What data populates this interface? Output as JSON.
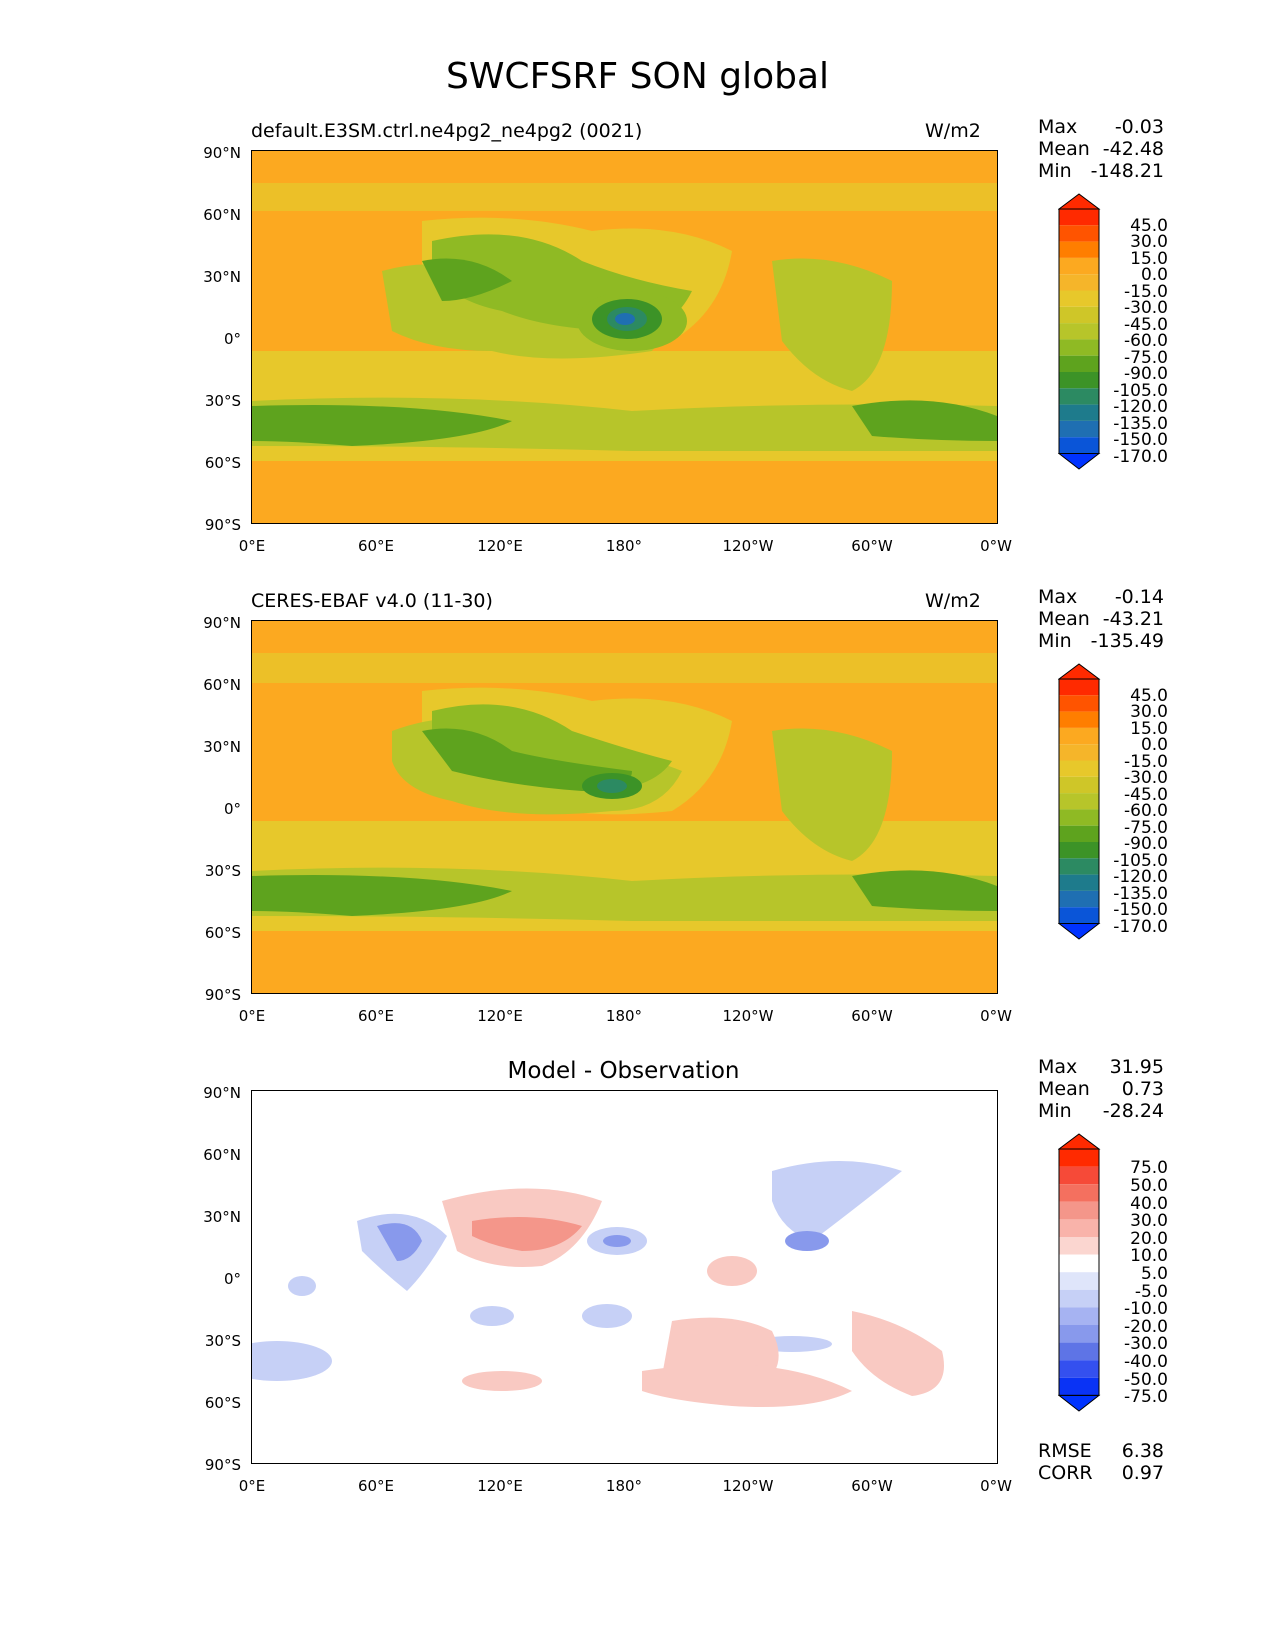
{
  "title": "SWCFSRF SON global",
  "colors": {
    "orange": "#fca920",
    "yellow": "#e7c82b",
    "yellowgreen": "#b7c52a",
    "green1": "#8fba24",
    "green2": "#5ea31e",
    "green3": "#3c9327",
    "teal": "#2c8a62",
    "blue1": "#1f6fb2",
    "white": "#ffffff",
    "red1": "#f9c9c2",
    "red2": "#f4968a",
    "blue_light": "#c6d0f6",
    "blue_mid": "#8899ec"
  },
  "panels": [
    {
      "left_label": "default.E3SM.ctrl.ne4pg2_ne4pg2 (0021)",
      "right_label": "W/m2",
      "max_label": "Max",
      "max": "-0.03",
      "mean_label": "Mean",
      "mean": "-42.48",
      "min_label": "Min",
      "min": "-148.21",
      "colorbar_levels": [
        "45.0",
        "30.0",
        "15.0",
        "0.0",
        "-15.0",
        "-30.0",
        "-45.0",
        "-60.0",
        "-75.0",
        "-90.0",
        "-105.0",
        "-120.0",
        "-135.0",
        "-150.0",
        "-170.0"
      ]
    },
    {
      "left_label": "CERES-EBAF v4.0 (11-30)",
      "right_label": "W/m2",
      "max_label": "Max",
      "max": "-0.14",
      "mean_label": "Mean",
      "mean": "-43.21",
      "min_label": "Min",
      "min": "-135.49",
      "colorbar_levels": [
        "45.0",
        "30.0",
        "15.0",
        "0.0",
        "-15.0",
        "-30.0",
        "-45.0",
        "-60.0",
        "-75.0",
        "-90.0",
        "-105.0",
        "-120.0",
        "-135.0",
        "-150.0",
        "-170.0"
      ]
    },
    {
      "center_title": "Model - Observation",
      "max_label": "Max",
      "max": "31.95",
      "mean_label": "Mean",
      "mean": "0.73",
      "min_label": "Min",
      "min": "-28.24",
      "rmse_label": "RMSE",
      "rmse": "6.38",
      "corr_label": "CORR",
      "corr": "0.97",
      "colorbar_levels": [
        "75.0",
        "50.0",
        "40.0",
        "30.0",
        "20.0",
        "10.0",
        "5.0",
        "-5.0",
        "-10.0",
        "-20.0",
        "-30.0",
        "-40.0",
        "-50.0",
        "-75.0"
      ]
    }
  ],
  "axes": {
    "yticks": [
      "90°N",
      "60°N",
      "30°N",
      "0°",
      "30°S",
      "60°S",
      "90°S"
    ],
    "xticks": [
      "0°E",
      "60°E",
      "120°E",
      "180°",
      "120°W",
      "60°W",
      "0°W"
    ]
  }
}
